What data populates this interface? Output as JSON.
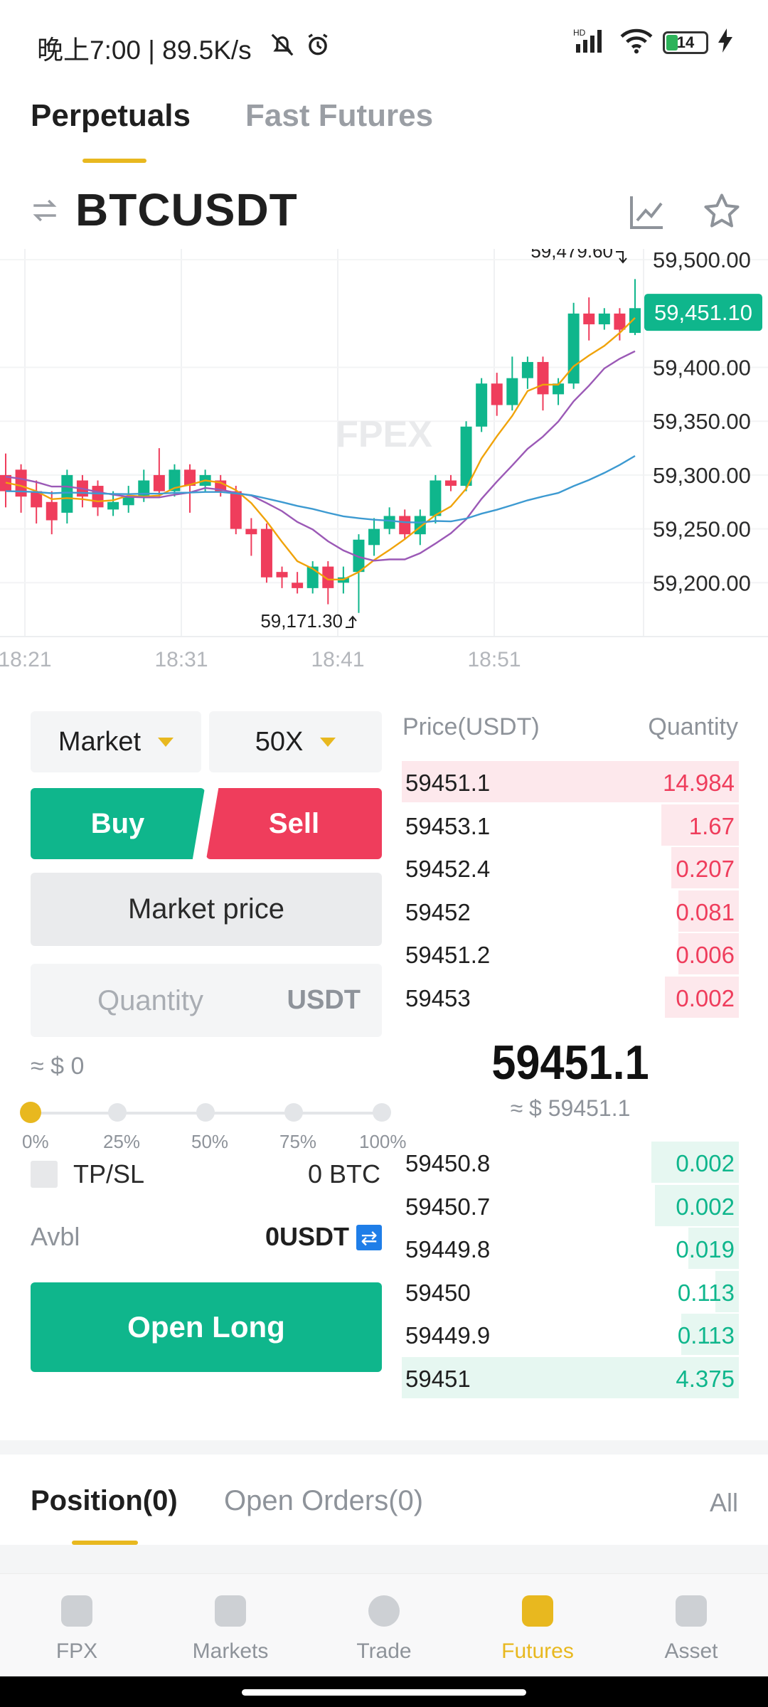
{
  "status_bar": {
    "time_text": "晚上7:00 | 89.5K/s",
    "battery_level": "14"
  },
  "top_tabs": [
    {
      "label": "Perpetuals",
      "active": true
    },
    {
      "label": "Fast Futures",
      "active": false
    }
  ],
  "symbol": {
    "name": "BTCUSDT"
  },
  "chart": {
    "watermark": "FPEX",
    "high_label": "59,479.60",
    "low_label": "59,171.30",
    "current_price_tag": "59,451.10",
    "y_ticks": [
      "59,500.00",
      "59,400.00",
      "59,350.00",
      "59,300.00",
      "59,250.00",
      "59,200.00"
    ],
    "x_ticks": [
      "18:21",
      "18:31",
      "18:41",
      "18:51"
    ],
    "colors": {
      "up": "#0fb68c",
      "down": "#ef3d5c",
      "ma_short": "#f0a30a",
      "ma_mid": "#9b59b6",
      "ma_long": "#3d9ad1"
    }
  },
  "trade_panel": {
    "order_type": "Market",
    "leverage": "50X",
    "buy_label": "Buy",
    "sell_label": "Sell",
    "market_price_label": "Market price",
    "quantity_placeholder": "Quantity",
    "quantity_unit": "USDT",
    "approx_value": "≈ $ 0",
    "slider_labels": [
      "0%",
      "25%",
      "50%",
      "75%",
      "100%"
    ],
    "tpsl_label": "TP/SL",
    "position_btc": "0 BTC",
    "avbl_label": "Avbl",
    "avbl_value": "0USDT",
    "open_long_label": "Open Long"
  },
  "order_book": {
    "header_price": "Price(USDT)",
    "header_quantity": "Quantity",
    "asks": [
      {
        "price": "59451.1",
        "qty": "14.984",
        "depth": 1.0
      },
      {
        "price": "59453.1",
        "qty": "1.67",
        "depth": 0.23
      },
      {
        "price": "59452.4",
        "qty": "0.207",
        "depth": 0.2
      },
      {
        "price": "59452",
        "qty": "0.081",
        "depth": 0.18
      },
      {
        "price": "59451.2",
        "qty": "0.006",
        "depth": 0.18
      },
      {
        "price": "59453",
        "qty": "0.002",
        "depth": 0.22
      }
    ],
    "last_price": "59451.1",
    "last_price_usd": "≈ $ 59451.1",
    "bids": [
      {
        "price": "59450.8",
        "qty": "0.002",
        "depth": 0.26
      },
      {
        "price": "59450.7",
        "qty": "0.002",
        "depth": 0.25
      },
      {
        "price": "59449.8",
        "qty": "0.019",
        "depth": 0.15
      },
      {
        "price": "59450",
        "qty": "0.113",
        "depth": 0.07
      },
      {
        "price": "59449.9",
        "qty": "0.113",
        "depth": 0.17
      },
      {
        "price": "59451",
        "qty": "4.375",
        "depth": 1.0
      }
    ]
  },
  "position_tabs": {
    "position": "Position(0)",
    "open_orders": "Open Orders(0)",
    "all": "All"
  },
  "bottom_nav": [
    {
      "label": "FPX",
      "icon": "home-icon",
      "active": false
    },
    {
      "label": "Markets",
      "icon": "markets-icon",
      "active": false
    },
    {
      "label": "Trade",
      "icon": "trade-icon",
      "active": false
    },
    {
      "label": "Futures",
      "icon": "futures-icon",
      "active": true
    },
    {
      "label": "Asset",
      "icon": "wallet-icon",
      "active": false
    }
  ]
}
